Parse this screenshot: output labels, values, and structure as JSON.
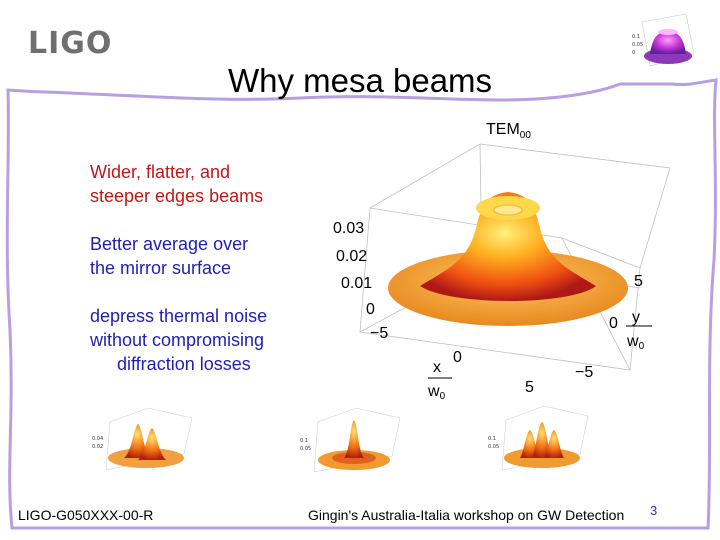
{
  "header": {
    "logo": "LIGO",
    "title": "Why mesa beams"
  },
  "bullets": {
    "b1": [
      "Wider, flatter, and",
      "steeper edges beams"
    ],
    "b2": [
      "Better average over",
      "the mirror surface"
    ],
    "b3": [
      "depress thermal noise",
      "without compromising",
      "diffraction losses"
    ]
  },
  "plot": {
    "title_main": "TEM",
    "title_sub": "00",
    "z_ticks": [
      "0.03",
      "0.02",
      "0.01",
      "0"
    ],
    "x_ticks": [
      "−5",
      "0",
      "5"
    ],
    "y_ticks": [
      "5",
      "0",
      "−5"
    ],
    "x_label_top": "x",
    "x_label_bottom": "w",
    "x_label_sub": "0",
    "y_label_top": "y",
    "y_label_bottom": "w",
    "y_label_sub": "0"
  },
  "colors": {
    "bullet": "#1f1fb0",
    "emphasis": "#c01818",
    "border": "#b8a0e0"
  },
  "footer": {
    "doc_id": "LIGO-G050XXX-00-R",
    "workshop": "Gingin's Australia-Italia workshop on GW Detection",
    "page": "3"
  }
}
